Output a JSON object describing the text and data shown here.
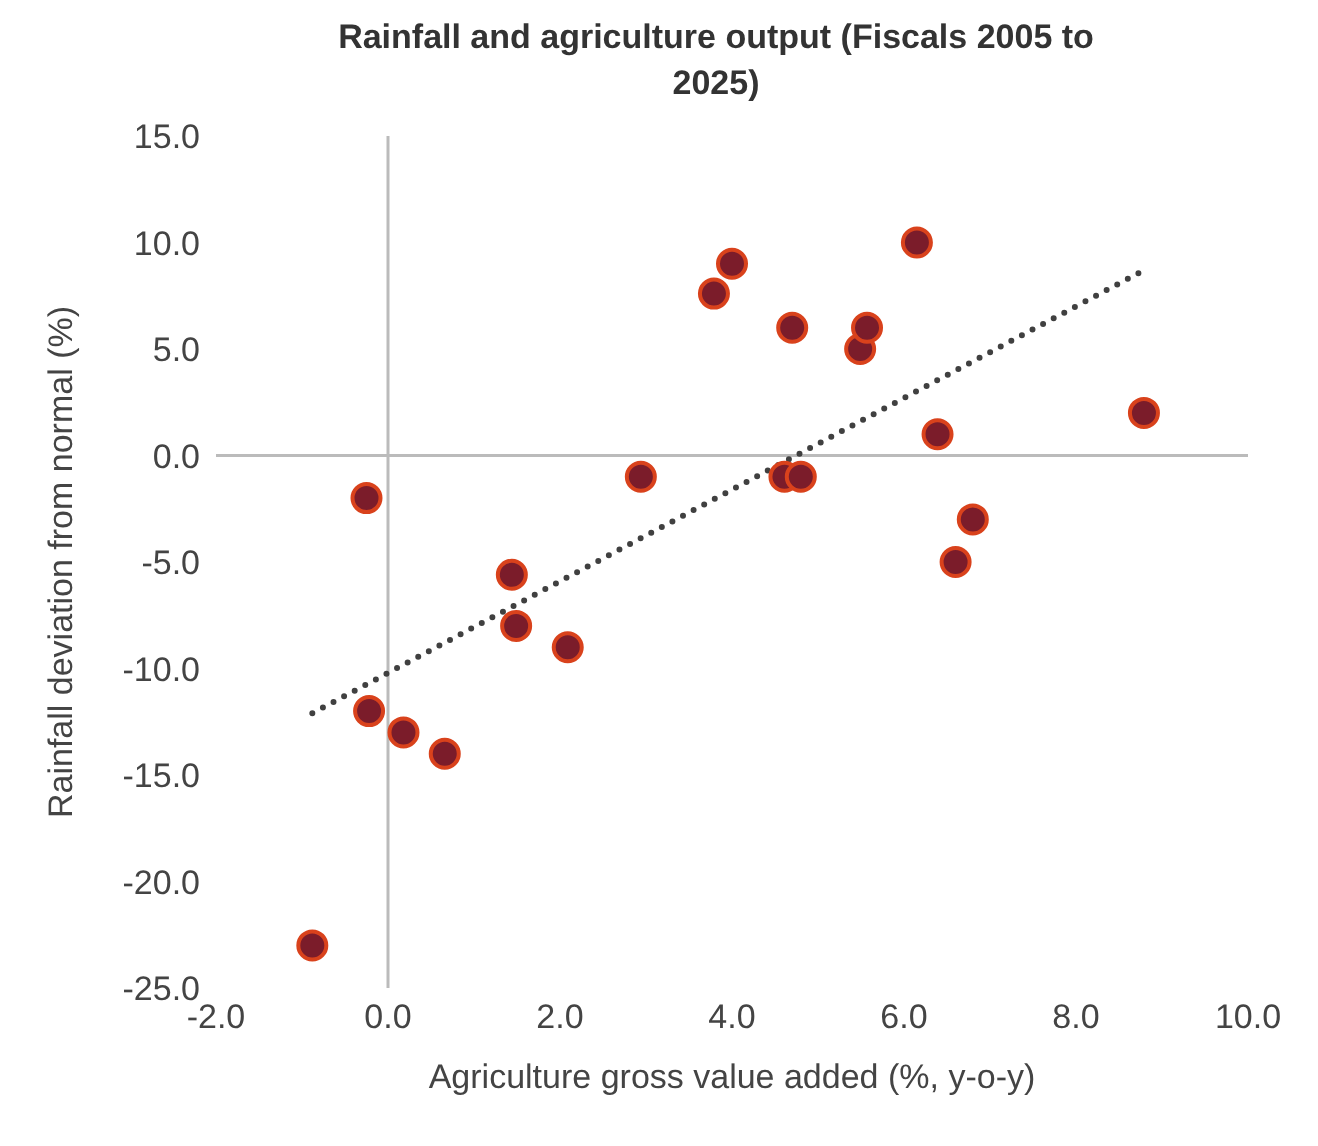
{
  "chart_data": {
    "type": "scatter",
    "title": "Rainfall and agriculture output (Fiscals 2005 to 2025)",
    "xlabel": "Agriculture gross value added (%, y-o-y)",
    "ylabel": "Rainfall deviation from normal (%)",
    "xlim": [
      -2,
      10
    ],
    "xticks": [
      {
        "value": -2,
        "label": "-2.0"
      },
      {
        "value": 0,
        "label": "0.0"
      },
      {
        "value": 2,
        "label": "2.0"
      },
      {
        "value": 4,
        "label": "4.0"
      },
      {
        "value": 6,
        "label": "6.0"
      },
      {
        "value": 8,
        "label": "8.0"
      },
      {
        "value": 10,
        "label": "10.0"
      }
    ],
    "ylim": [
      -25,
      15
    ],
    "yticks": [
      {
        "value": -25,
        "label": "-25.0"
      },
      {
        "value": -20,
        "label": "-20.0"
      },
      {
        "value": -15,
        "label": "-15.0"
      },
      {
        "value": -10,
        "label": "-10.0"
      },
      {
        "value": -5,
        "label": "-5.0"
      },
      {
        "value": 0,
        "label": "0.0"
      },
      {
        "value": 5,
        "label": "5.0"
      },
      {
        "value": 10,
        "label": "10.0"
      },
      {
        "value": 15,
        "label": "15.0"
      }
    ],
    "legend": false,
    "marker": "circle",
    "series": [
      {
        "color": "#7b1c2a",
        "x": [
          -0.25,
          1.44,
          1.49,
          2.94,
          3.79,
          4.0,
          4.7,
          4.61,
          4.8,
          5.49,
          5.57,
          6.15,
          6.39,
          6.8,
          6.6,
          8.79,
          2.09,
          -0.22,
          0.18,
          0.66,
          -0.88
        ],
        "values": [
          -2,
          -5.6,
          -8,
          -1,
          7.6,
          9,
          6,
          -1,
          -1,
          5,
          6,
          10,
          1,
          -3,
          -5,
          2,
          -9,
          -12,
          -13,
          -14,
          -23
        ]
      },
      {
        "type": "line",
        "color": "#404040",
        "line_style": "dotted",
        "marker": "none",
        "x": [
          -0.88,
          8.79
        ],
        "values": [
          -12.1,
          8.7
        ]
      }
    ]
  }
}
